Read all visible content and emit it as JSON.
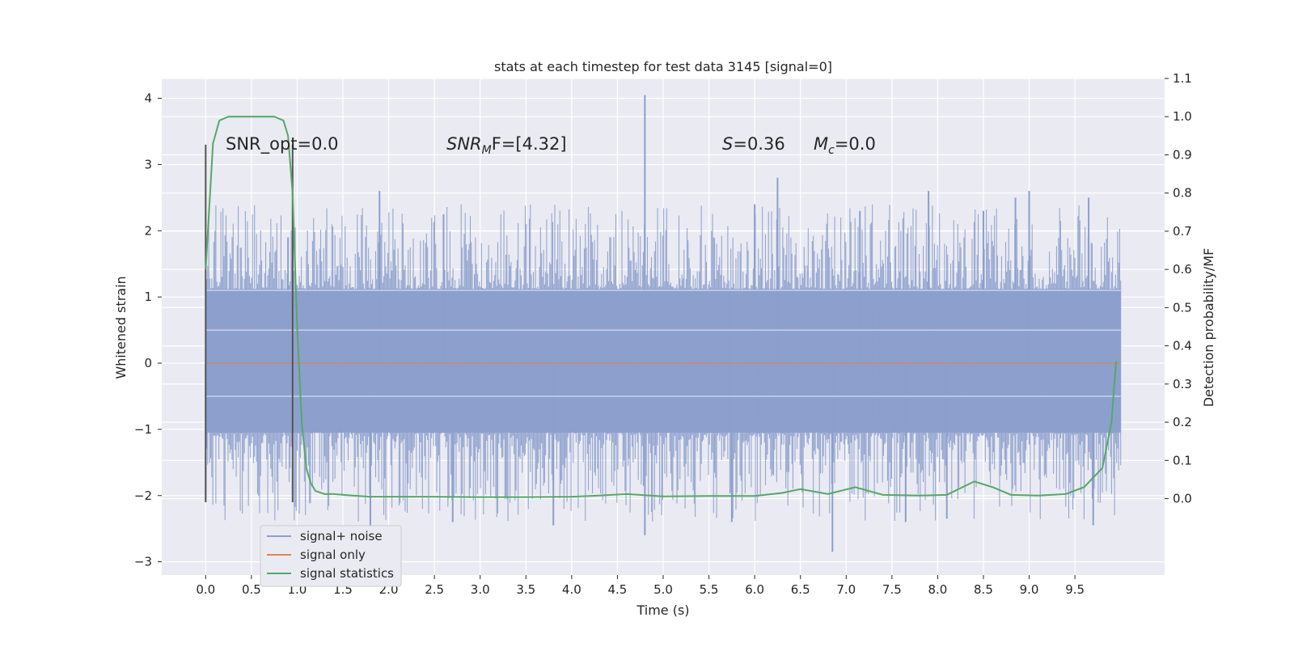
{
  "chart_data": {
    "type": "line",
    "title": "stats at each timestep for test data 3145 [signal=0]",
    "xlabel": "Time (s)",
    "ylabel": "Whitened strain",
    "ylabel_right": "Detection probability/MF",
    "xlim": [
      -0.48,
      10.48
    ],
    "ylim": [
      -3.2,
      4.3
    ],
    "ylim_right": [
      -0.2,
      1.1
    ],
    "x_ticks": [
      "0.0",
      "0.5",
      "1.0",
      "1.5",
      "2.0",
      "2.5",
      "3.0",
      "3.5",
      "4.0",
      "4.5",
      "5.0",
      "5.5",
      "6.0",
      "6.5",
      "7.0",
      "7.5",
      "8.0",
      "8.5",
      "9.0",
      "9.5"
    ],
    "y_ticks": [
      "−3",
      "−2",
      "−1",
      "0",
      "1",
      "2",
      "3",
      "4"
    ],
    "y_ticks_right": [
      "0.0",
      "0.1",
      "0.2",
      "0.3",
      "0.4",
      "0.5",
      "0.6",
      "0.7",
      "0.8",
      "0.9",
      "1.0",
      "1.1"
    ],
    "grid": true,
    "legend_position": "lower-left",
    "annotations": {
      "snr_opt": "SNR_opt=0.0",
      "snr_mf_main": "SNR",
      "snr_mf_sub": "M",
      "snr_mf_rest": "F=[4.32]",
      "s_main": "S",
      "s_rest": "=0.36",
      "mc_main": "M",
      "mc_sub": "c",
      "mc_rest": "=0.0"
    },
    "colors": {
      "noise": "#8c9fcc",
      "signal": "#dd8452",
      "stats": "#55a868",
      "marker": "#555555",
      "background": "#eaeaf2",
      "grid": "#ffffff"
    },
    "series": [
      {
        "name": "signal+ noise",
        "axis": "left",
        "x_range": [
          0.0,
          10.0
        ],
        "envelope_core": [
          -1.05,
          1.12
        ],
        "envelope_typical": [
          -1.9,
          1.9
        ],
        "spikes": [
          {
            "x": 4.8,
            "y": 4.05
          },
          {
            "x": 4.8,
            "y": -2.6
          },
          {
            "x": 1.9,
            "y": 2.6
          },
          {
            "x": 1.8,
            "y": -2.45
          },
          {
            "x": 2.6,
            "y": 2.25
          },
          {
            "x": 2.7,
            "y": -2.4
          },
          {
            "x": 6.25,
            "y": 2.8
          },
          {
            "x": 6.0,
            "y": 2.4
          },
          {
            "x": 6.85,
            "y": -2.85
          },
          {
            "x": 5.75,
            "y": -2.4
          },
          {
            "x": 3.8,
            "y": -2.45
          },
          {
            "x": 9.7,
            "y": -2.45
          },
          {
            "x": 9.0,
            "y": 2.6
          },
          {
            "x": 8.5,
            "y": 2.3
          },
          {
            "x": 9.65,
            "y": 2.5
          },
          {
            "x": 7.9,
            "y": 2.6
          },
          {
            "x": 8.1,
            "y": -2.35
          },
          {
            "x": 8.85,
            "y": 2.5
          },
          {
            "x": 0.0,
            "y": -2.1
          },
          {
            "x": 0.9,
            "y": 1.9
          },
          {
            "x": 7.15,
            "y": 2.3
          },
          {
            "x": 7.65,
            "y": -2.4
          }
        ]
      },
      {
        "name": "signal only",
        "axis": "left",
        "x": [
          0.0,
          10.0
        ],
        "y": [
          0.0,
          0.0
        ]
      },
      {
        "name": "signal statistics",
        "axis": "right",
        "x": [
          0.0,
          0.08,
          0.15,
          0.25,
          0.4,
          0.6,
          0.75,
          0.85,
          0.9,
          0.95,
          1.0,
          1.05,
          1.1,
          1.15,
          1.2,
          1.3,
          1.4,
          1.6,
          1.8,
          2.0,
          2.5,
          3.0,
          3.5,
          4.0,
          4.3,
          4.6,
          5.0,
          5.5,
          6.0,
          6.3,
          6.5,
          6.8,
          7.1,
          7.4,
          7.8,
          8.1,
          8.4,
          8.6,
          8.8,
          9.1,
          9.4,
          9.6,
          9.8,
          9.9,
          9.95
        ],
        "y": [
          0.6,
          0.93,
          0.99,
          1.0,
          1.0,
          1.0,
          1.0,
          0.99,
          0.95,
          0.8,
          0.45,
          0.2,
          0.08,
          0.04,
          0.02,
          0.012,
          0.012,
          0.008,
          0.005,
          0.005,
          0.005,
          0.004,
          0.004,
          0.005,
          0.008,
          0.012,
          0.006,
          0.007,
          0.007,
          0.015,
          0.025,
          0.012,
          0.03,
          0.01,
          0.008,
          0.01,
          0.045,
          0.03,
          0.01,
          0.008,
          0.012,
          0.03,
          0.08,
          0.2,
          0.36
        ]
      }
    ],
    "vertical_markers": [
      0.0,
      0.95
    ]
  }
}
